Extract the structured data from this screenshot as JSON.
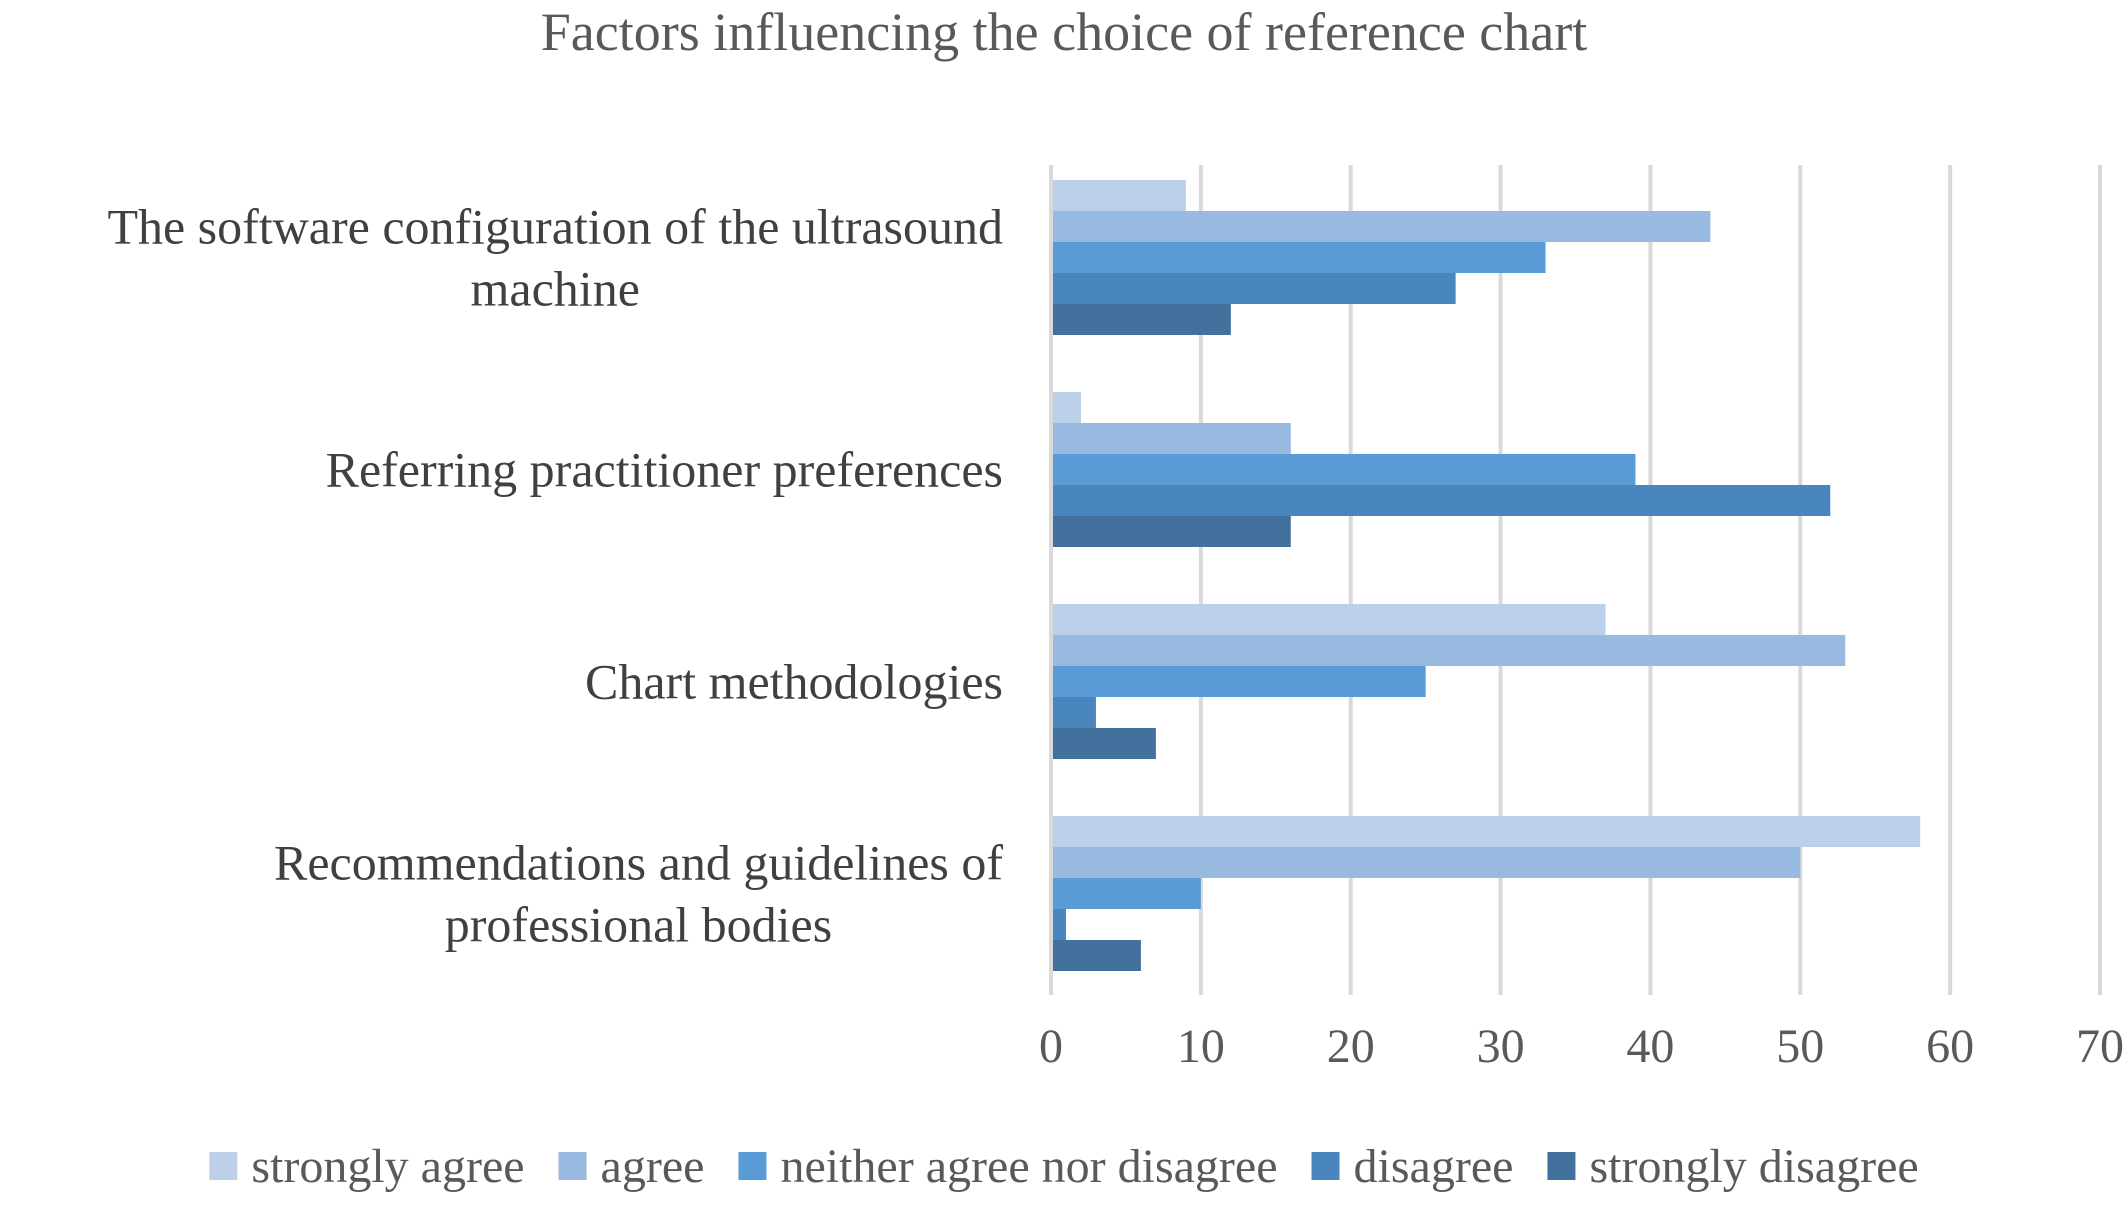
{
  "chart_data": {
    "type": "bar",
    "orientation": "horizontal",
    "title": "Factors influencing the choice of reference chart",
    "categories": [
      [
        "The software configuration of the ultrasound",
        "machine"
      ],
      [
        "Referring practitioner preferences"
      ],
      [
        "Chart methodologies"
      ],
      [
        "Recommendations and guidelines of",
        "professional bodies"
      ]
    ],
    "series": [
      {
        "name": "strongly agree",
        "color": "#bdd0ea",
        "values": [
          9,
          2,
          37,
          58
        ]
      },
      {
        "name": "agree",
        "color": "#98b9e0",
        "values": [
          44,
          16,
          53,
          50
        ]
      },
      {
        "name": "neither agree nor disagree",
        "color": "#5b9bd5",
        "values": [
          33,
          39,
          25,
          10
        ]
      },
      {
        "name": "disagree",
        "color": "#4a86be",
        "values": [
          27,
          52,
          3,
          1
        ]
      },
      {
        "name": "strongly disagree",
        "color": "#41719c",
        "values": [
          12,
          16,
          7,
          6
        ]
      }
    ],
    "xlim": [
      0,
      70
    ],
    "xticks": [
      0,
      10,
      20,
      30,
      40,
      50,
      60,
      70
    ],
    "grid": true,
    "legend_position": "bottom"
  }
}
